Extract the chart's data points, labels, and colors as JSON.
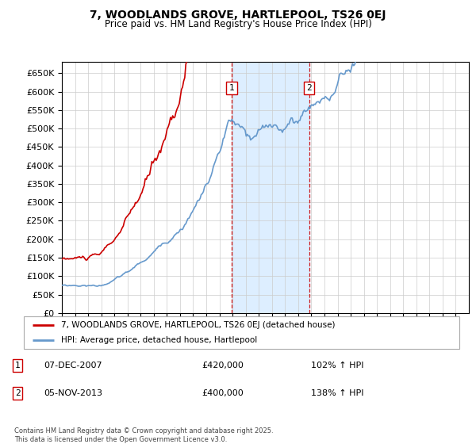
{
  "title": "7, WOODLANDS GROVE, HARTLEPOOL, TS26 0EJ",
  "subtitle": "Price paid vs. HM Land Registry's House Price Index (HPI)",
  "ylim": [
    0,
    680000
  ],
  "yticks": [
    0,
    50000,
    100000,
    150000,
    200000,
    250000,
    300000,
    350000,
    400000,
    450000,
    500000,
    550000,
    600000,
    650000
  ],
  "line1_color": "#cc0000",
  "line2_color": "#6699cc",
  "shaded_color": "#ddeeff",
  "marker1_date_x": 2007.92,
  "marker2_date_x": 2013.84,
  "legend_line1": "7, WOODLANDS GROVE, HARTLEPOOL, TS26 0EJ (detached house)",
  "legend_line2": "HPI: Average price, detached house, Hartlepool",
  "sale1_label": "1",
  "sale1_date": "07-DEC-2007",
  "sale1_price": "£420,000",
  "sale1_hpi": "102% ↑ HPI",
  "sale2_label": "2",
  "sale2_date": "05-NOV-2013",
  "sale2_price": "£400,000",
  "sale2_hpi": "138% ↑ HPI",
  "footnote": "Contains HM Land Registry data © Crown copyright and database right 2025.\nThis data is licensed under the Open Government Licence v3.0.",
  "xmin": 1995,
  "xmax": 2026
}
